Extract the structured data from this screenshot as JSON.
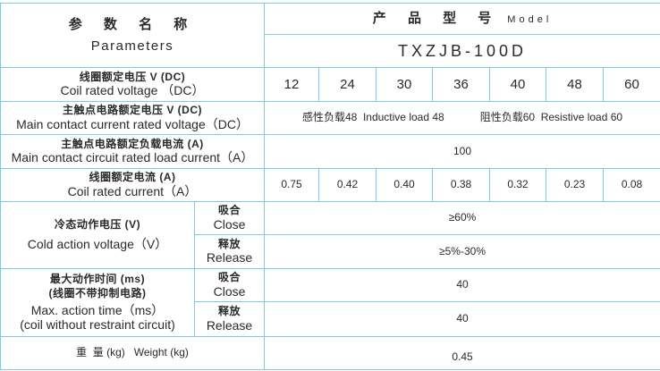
{
  "header": {
    "param_zh": "参 数 名 称",
    "param_en": "Parameters",
    "model_zh": "产 品 型 号",
    "model_en": "Model",
    "model_name": "TXZJB-100D"
  },
  "rows": {
    "coil_voltage": {
      "zh": "线圈额定电压 V (DC)",
      "en": "Coil rated voltage （DC）",
      "values": [
        "12",
        "24",
        "30",
        "36",
        "40",
        "48",
        "60"
      ]
    },
    "contact_voltage": {
      "zh": "主触点电路额定电压 V (DC)",
      "en": "Main contact current rated voltage（DC）",
      "inductive": "感性负载48  Inductive load 48",
      "resistive": "阻性负载60  Resistive load 60"
    },
    "load_current": {
      "zh": "主触点电路额定负载电流 (A)",
      "en": "Main contact circuit rated load current（A）",
      "value": "100"
    },
    "coil_current": {
      "zh": "线圈额定电流 (A)",
      "en": "Coil rated current（A）",
      "values": [
        "0.75",
        "0.42",
        "0.40",
        "0.38",
        "0.32",
        "0.23",
        "0.08"
      ]
    },
    "cold_voltage": {
      "zh": "冷态动作电压 (V)",
      "en": "Cold action voltage（V）",
      "close_zh": "吸合",
      "close_en": "Close",
      "close_value": "≥60%",
      "release_zh": "释放",
      "release_en": "Release",
      "release_value": "≥5%-30%"
    },
    "action_time": {
      "zh1": "最大动作时间 (ms)",
      "zh2": "(线圈不带抑制电路)",
      "en1": "Max. action time（ms）",
      "en2": "(coil without restraint circuit)",
      "close_zh": "吸合",
      "close_en": "Close",
      "close_value": "40",
      "release_zh": "释放",
      "release_en": "Release",
      "release_value": "40"
    },
    "weight": {
      "label": "重  量 (kg)   Weight (kg)",
      "value": "0.45"
    }
  }
}
